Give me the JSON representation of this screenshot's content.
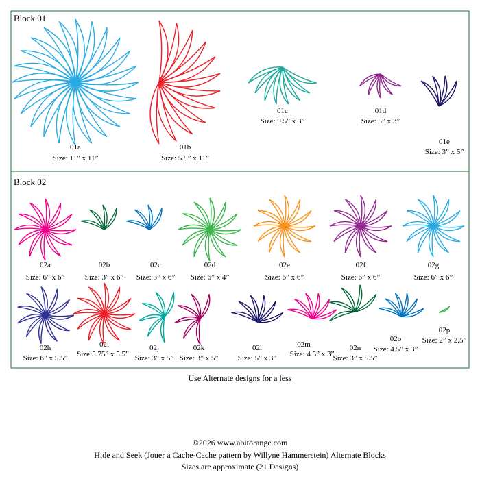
{
  "blocks": [
    {
      "title": "Block 01",
      "items": [
        {
          "id": "01a",
          "size": "Size: 11” x 11”"
        },
        {
          "id": "01b",
          "size": "Size: 5.5” x 11”"
        },
        {
          "id": "01c",
          "size": "Size: 9.5” x 3”"
        },
        {
          "id": "01d",
          "size": "Size: 5” x 3”"
        },
        {
          "id": "01e",
          "size": "Size: 3” x 5”"
        }
      ]
    },
    {
      "title": "Block 02",
      "items": [
        {
          "id": "02a",
          "size": "Size: 6” x 6”"
        },
        {
          "id": "02b",
          "size": "Size: 3” x 6”"
        },
        {
          "id": "02c",
          "size": "Size: 3” x 6”"
        },
        {
          "id": "02d",
          "size": "Size: 6” x 4”"
        },
        {
          "id": "02e",
          "size": "Size: 6” x 6”"
        },
        {
          "id": "02f",
          "size": "Size: 6” x 6”"
        },
        {
          "id": "02g",
          "size": "Size: 6” x 6”"
        },
        {
          "id": "02h",
          "size": "Size: 6” x 5.5”"
        },
        {
          "id": "02i",
          "size": "Size:5.75” x 5.5”"
        },
        {
          "id": "02j",
          "size": "Size: 3” x 5”"
        },
        {
          "id": "02k",
          "size": "Size: 3” x 5”"
        },
        {
          "id": "02l",
          "size": "Size: 5” x 3”"
        },
        {
          "id": "02m",
          "size": "Size: 4.5” x 3”"
        },
        {
          "id": "02n",
          "size": "Size: 3” x 5.5”"
        },
        {
          "id": "02o",
          "size": "Size: 4.5” x 3”"
        },
        {
          "id": "02p",
          "size": "Size: 2” x 2.5”"
        }
      ]
    }
  ],
  "note": "Use Alternate designs for a less",
  "footer": {
    "copyright": "©2026 www.abitorange.com",
    "title": "Hide and Seek (Jouer a Cache-Cache pattern by Willyne Hammerstein) Alternate Blocks",
    "subtitle": "Sizes are approximate (21 Designs)"
  }
}
